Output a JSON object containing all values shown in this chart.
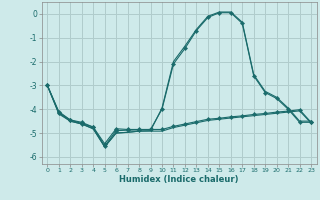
{
  "xlabel": "Humidex (Indice chaleur)",
  "bg_color": "#ceeaea",
  "grid_color": "#b0cccc",
  "line_color": "#1a6b6b",
  "xlim": [
    -0.5,
    23.5
  ],
  "ylim": [
    -6.3,
    0.5
  ],
  "yticks": [
    0,
    -1,
    -2,
    -3,
    -4,
    -5,
    -6
  ],
  "xticks": [
    0,
    1,
    2,
    3,
    4,
    5,
    6,
    7,
    8,
    9,
    10,
    11,
    12,
    13,
    14,
    15,
    16,
    17,
    18,
    19,
    20,
    21,
    22,
    23
  ],
  "line1_x": [
    0,
    1,
    2,
    3,
    4,
    5,
    6,
    7,
    8,
    9,
    10,
    11,
    12,
    13,
    14,
    15,
    16,
    17,
    18,
    19,
    20,
    21,
    22,
    23
  ],
  "line1_y": [
    -3.0,
    -4.15,
    -4.45,
    -4.55,
    -4.75,
    -5.45,
    -4.82,
    -4.85,
    -4.85,
    -4.85,
    -4.85,
    -4.72,
    -4.62,
    -4.52,
    -4.42,
    -4.38,
    -4.32,
    -4.28,
    -4.22,
    -4.18,
    -4.12,
    -4.08,
    -4.02,
    -4.55
  ],
  "line2_x": [
    0,
    1,
    2,
    3,
    4,
    5,
    6,
    7,
    8,
    9,
    10,
    11,
    12,
    13,
    14,
    15,
    16,
    17,
    18,
    19,
    20,
    21,
    22,
    23
  ],
  "line2_y": [
    -3.0,
    -4.2,
    -4.5,
    -4.62,
    -4.82,
    -5.58,
    -5.0,
    -4.97,
    -4.92,
    -4.92,
    -4.92,
    -4.77,
    -4.67,
    -4.57,
    -4.47,
    -4.42,
    -4.37,
    -4.32,
    -4.27,
    -4.22,
    -4.17,
    -4.12,
    -4.07,
    -4.58
  ],
  "line3_x": [
    0,
    1,
    2,
    3,
    4,
    5,
    6,
    7,
    8,
    9,
    10,
    11,
    12,
    13,
    14,
    15,
    16,
    17,
    18,
    19,
    20,
    21,
    22,
    23
  ],
  "line3_y": [
    -3.0,
    -4.1,
    -4.45,
    -4.6,
    -4.75,
    -5.55,
    -4.9,
    -4.88,
    -4.87,
    -4.85,
    -4.0,
    -2.1,
    -1.45,
    -0.7,
    -0.15,
    0.05,
    0.05,
    -0.4,
    -2.6,
    -3.3,
    -3.55,
    -4.0,
    -4.55,
    -4.55
  ],
  "line4_x": [
    0,
    1,
    2,
    3,
    4,
    5,
    6,
    7,
    8,
    9,
    10,
    11,
    12,
    13,
    14,
    15,
    16,
    17,
    18,
    19,
    20,
    21,
    22,
    23
  ],
  "line4_y": [
    -3.0,
    -4.15,
    -4.5,
    -4.62,
    -4.82,
    -5.58,
    -5.0,
    -4.97,
    -4.92,
    -4.9,
    -3.95,
    -2.0,
    -1.35,
    -0.65,
    -0.1,
    0.08,
    0.08,
    -0.35,
    -2.55,
    -3.25,
    -3.5,
    -3.95,
    -4.5,
    -4.5
  ],
  "markersize": 2.2
}
